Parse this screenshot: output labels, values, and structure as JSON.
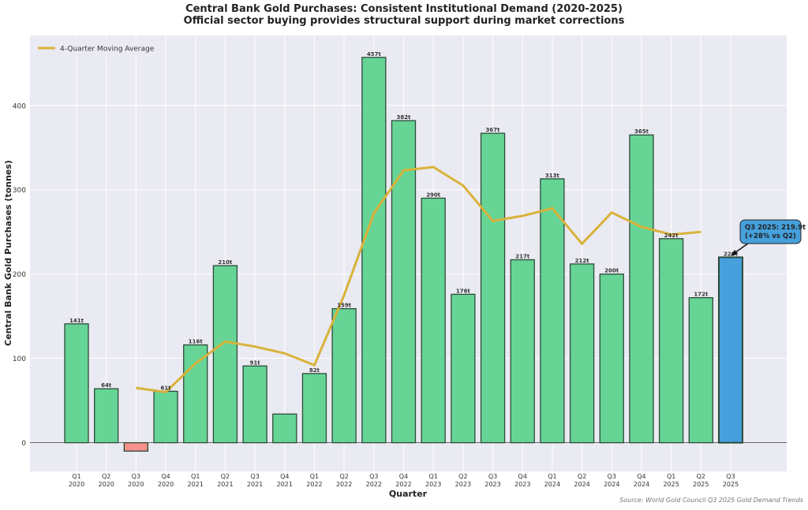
{
  "chart_data": {
    "type": "bar",
    "title": "Central Bank Gold Purchases: Consistent Institutional Demand (2020-2025)",
    "subtitle": "Official sector buying provides structural support during market corrections",
    "xlabel": "Quarter",
    "ylabel": "Central Bank Gold Purchases (tonnes)",
    "ylim": [
      -34,
      483
    ],
    "yticks": [
      0,
      100,
      200,
      300,
      400
    ],
    "grid": true,
    "legend_position": "top-left",
    "categories": [
      "Q1\n2020",
      "Q2\n2020",
      "Q3\n2020",
      "Q4\n2020",
      "Q1\n2021",
      "Q2\n2021",
      "Q3\n2021",
      "Q4\n2021",
      "Q1\n2022",
      "Q2\n2022",
      "Q3\n2022",
      "Q4\n2022",
      "Q1\n2023",
      "Q2\n2023",
      "Q3\n2023",
      "Q4\n2023",
      "Q1\n2024",
      "Q2\n2024",
      "Q3\n2024",
      "Q4\n2024",
      "Q1\n2025",
      "Q2\n2025",
      "Q3\n2025"
    ],
    "values": [
      141,
      64,
      -10,
      61,
      116,
      210,
      91,
      34,
      82,
      159,
      457,
      382,
      290,
      176,
      367,
      217,
      313,
      212,
      200,
      365,
      242,
      172,
      219.9
    ],
    "data_labels": [
      "141t",
      "64t",
      "",
      "61t",
      "116t",
      "210t",
      "91t",
      "",
      "82t",
      "159t",
      "457t",
      "382t",
      "290t",
      "176t",
      "367t",
      "217t",
      "313t",
      "212t",
      "200t",
      "365t",
      "242t",
      "172t",
      "220t"
    ],
    "series": [
      {
        "name": "4-Quarter Moving Average",
        "type": "line",
        "values": [
          null,
          null,
          65,
          60,
          94,
          120,
          114,
          106,
          92,
          175,
          272,
          323,
          327,
          305,
          263,
          269,
          278,
          236,
          273,
          256,
          247,
          250,
          null
        ]
      }
    ],
    "annotation": {
      "text": "Q3 2025: 219.9t\n(+28% vs Q2)",
      "target": "Q3\n2025"
    },
    "source": "Source: World Gold Council Q3 2025 Gold Demand Trends",
    "colors": {
      "positive": "#66d495",
      "negative": "#f5908a",
      "highlight": "#45a0dc",
      "line": "#d9b23a",
      "plot_bg": "#eaeaf2"
    }
  }
}
